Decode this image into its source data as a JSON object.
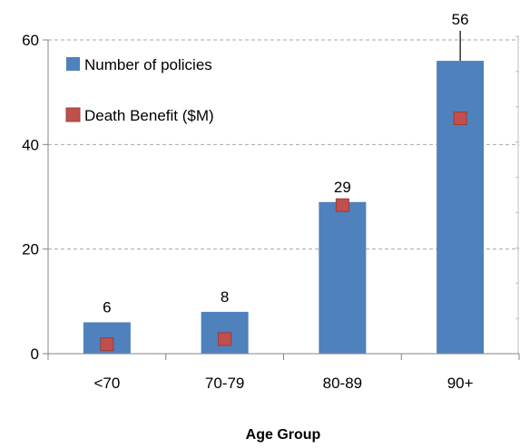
{
  "chart_data": {
    "type": "bar",
    "categories": [
      "<70",
      "70-79",
      "80-89",
      "90+"
    ],
    "series": [
      {
        "name": "Number of policies",
        "kind": "bar",
        "values": [
          6,
          8,
          29,
          56
        ],
        "color": "#4F81BD",
        "data_labels": [
          "6",
          "8",
          "29",
          "56"
        ]
      },
      {
        "name": "Death Benefit ($M)",
        "kind": "marker",
        "values": [
          1.8,
          2.8,
          28.4,
          45.0
        ],
        "color": "#C0504D"
      }
    ],
    "xlabel": "Age Group",
    "ylabel": "",
    "ylim": [
      0,
      60
    ],
    "yticks": [
      0,
      20,
      40,
      60
    ],
    "grid": true,
    "legend": "top-left",
    "secondary_axis": "right, unlabeled"
  }
}
